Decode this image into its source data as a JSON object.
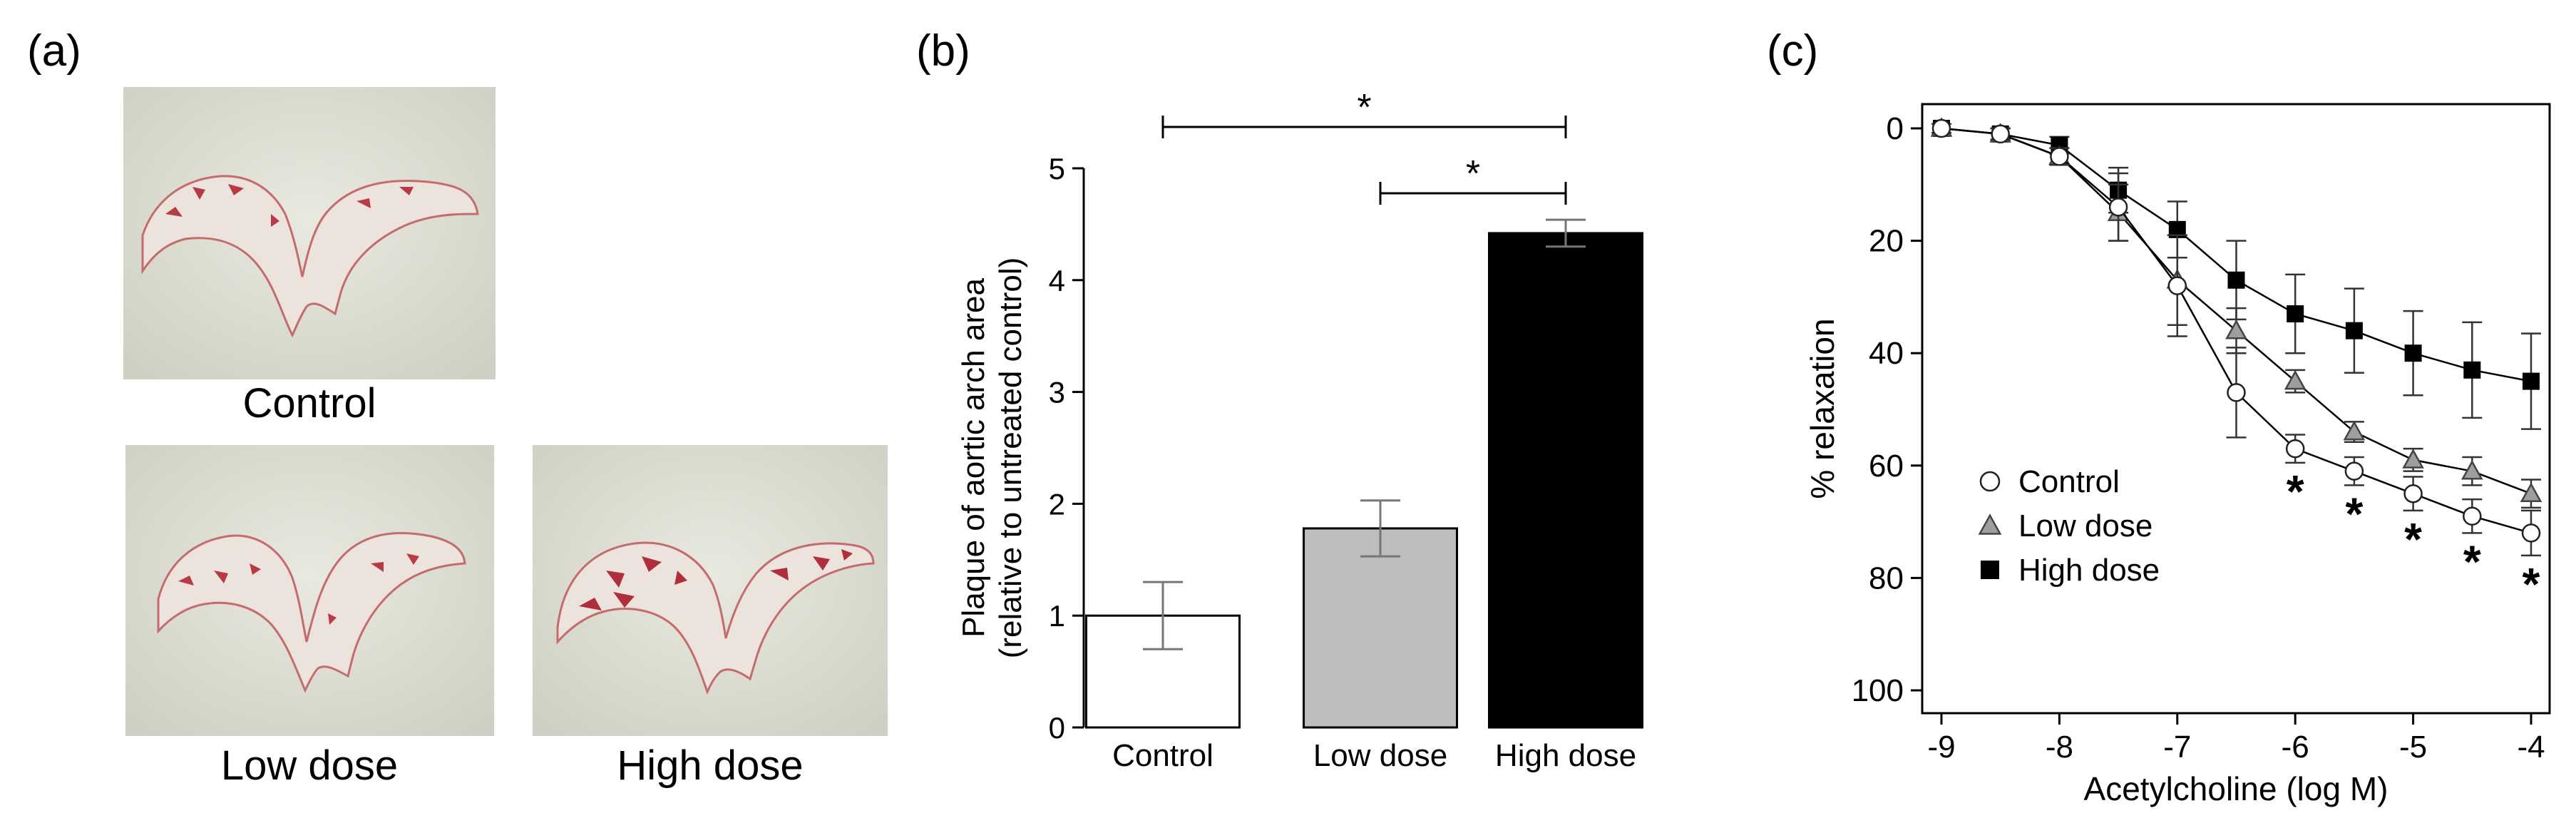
{
  "panel_a": {
    "label": "(a)",
    "images": [
      {
        "name": "Control",
        "caption": "Control"
      },
      {
        "name": "Low dose",
        "caption": "Low dose"
      },
      {
        "name": "High dose",
        "caption": "High dose"
      }
    ]
  },
  "chart_data": [
    {
      "type": "bar",
      "panel_label": "(b)",
      "categories": [
        "Control",
        "Low dose",
        "High dose"
      ],
      "values": [
        1.0,
        1.78,
        4.42
      ],
      "errors": [
        0.3,
        0.25,
        0.12
      ],
      "colors": [
        "#ffffff",
        "#bdbdbd",
        "#000000"
      ],
      "ylabel_lines": [
        "Plaque of aortic arch area",
        "(relative to untreated control)"
      ],
      "ylim": [
        0,
        5
      ],
      "yticks": [
        0,
        1,
        2,
        3,
        4,
        5
      ],
      "significance": [
        {
          "from": "Control",
          "to": "High dose",
          "label": "*"
        },
        {
          "from": "Low dose",
          "to": "High dose",
          "label": "*"
        }
      ],
      "grid": false
    },
    {
      "type": "line",
      "panel_label": "(c)",
      "xlabel": "Acetylcholine (log M)",
      "ylabel": "% relaxation",
      "xlim": [
        -9,
        -4
      ],
      "ylim": [
        0,
        100
      ],
      "y_inverted": true,
      "xticks": [
        -9,
        -8,
        -7,
        -6,
        -5,
        -4
      ],
      "xtick_labels": [
        "-9",
        "-8",
        "-7",
        "-6",
        "-5",
        "-4"
      ],
      "yticks": [
        0,
        20,
        40,
        60,
        80,
        100
      ],
      "x": [
        -9,
        -8.5,
        -8,
        -7.5,
        -7,
        -6.5,
        -6,
        -5.5,
        -5,
        -4.5,
        -4
      ],
      "series": [
        {
          "name": "Control",
          "marker": "circle-open",
          "values": [
            0,
            1,
            5,
            14,
            28,
            47,
            57,
            61,
            65,
            69,
            72
          ],
          "errors": [
            0.8,
            1,
            1.5,
            6,
            9,
            8,
            2.5,
            2.5,
            3,
            3,
            4
          ]
        },
        {
          "name": "Low dose",
          "marker": "triangle-grey",
          "values": [
            0,
            1,
            5,
            15,
            27,
            36,
            45,
            54,
            59,
            61,
            65
          ],
          "errors": [
            0.8,
            1,
            1.5,
            5,
            8,
            4,
            2,
            1.8,
            2,
            2.5,
            2.5
          ]
        },
        {
          "name": "High dose",
          "marker": "square-filled",
          "values": [
            0,
            1,
            3,
            11,
            18,
            27,
            33,
            36,
            40,
            43,
            45
          ],
          "errors": [
            0.8,
            1,
            1.5,
            4,
            5,
            7,
            7,
            7.5,
            7.5,
            8.5,
            8.5
          ]
        }
      ],
      "significance_x": [
        -6,
        -5.5,
        -5,
        -4.5,
        -4
      ],
      "significance_label": "*",
      "legend_placement": "lower-left",
      "grid": false
    }
  ]
}
